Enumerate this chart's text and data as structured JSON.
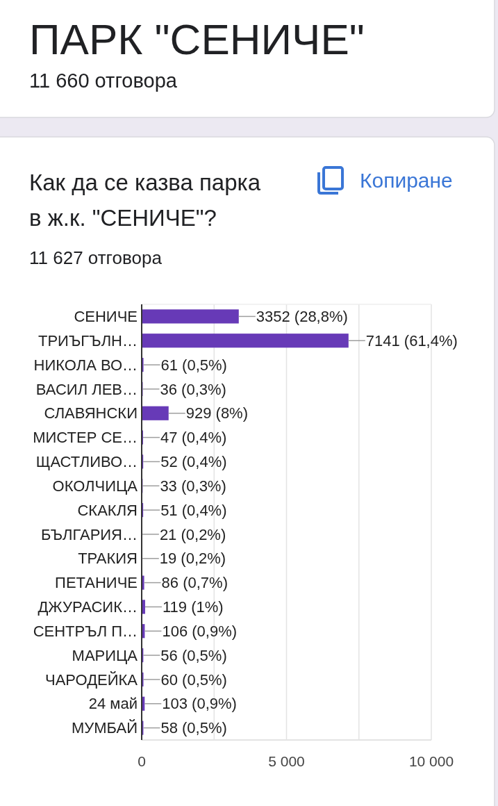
{
  "chart_data": {
    "type": "bar",
    "orientation": "horizontal",
    "title": "Как да се казва парка в ж.к. \"СЕНИЧЕ\"?",
    "subtitle": "11 627 отговора",
    "annotations": [
      "ПАРК \"СЕНИЧЕ\"",
      "11 660 отговора",
      "Копиране"
    ],
    "categories": [
      "СЕНИЧЕ",
      "ТРИЪГЪЛН…",
      "НИКОЛА ВО…",
      "ВАСИЛ ЛЕВ…",
      "СЛАВЯНСКИ",
      "МИСТЕР СЕ…",
      "ЩАСТЛИВО…",
      "ОКОЛЧИЦА",
      "СКАКЛЯ",
      "БЪЛГАРИЯ…",
      "ТРАКИЯ",
      "ПЕТАНИЧЕ",
      "ДЖУРАСИК…",
      "СЕНТРЪЛ П…",
      "МАРИЦА",
      "ЧАРОДЕЙКА",
      "24 май",
      "МУМБАЙ"
    ],
    "values": [
      3352,
      7141,
      61,
      36,
      929,
      47,
      52,
      33,
      51,
      21,
      19,
      86,
      119,
      106,
      56,
      60,
      103,
      58
    ],
    "value_labels": [
      "3352 (28,8%)",
      "7141 (61,4%)",
      "61 (0,5%)",
      "36 (0,3%)",
      "929 (8%)",
      "47 (0,4%)",
      "52 (0,4%)",
      "33 (0,3%)",
      "51 (0,4%)",
      "21 (0,2%)",
      "19 (0,2%)",
      "86 (0,7%)",
      "119 (1%)",
      "106 (0,9%)",
      "56 (0,5%)",
      "60 (0,5%)",
      "103 (0,9%)",
      "58 (0,5%)"
    ],
    "color": "#673ab7",
    "xlim": [
      0,
      10000
    ],
    "xticks": [
      0,
      {
        "value": 2500,
        "label": null
      },
      {
        "value": 5000,
        "label": "5 000"
      },
      {
        "value": 7500,
        "label": null
      },
      {
        "value": 10000,
        "label": "10 000"
      }
    ],
    "grid": "x"
  }
}
